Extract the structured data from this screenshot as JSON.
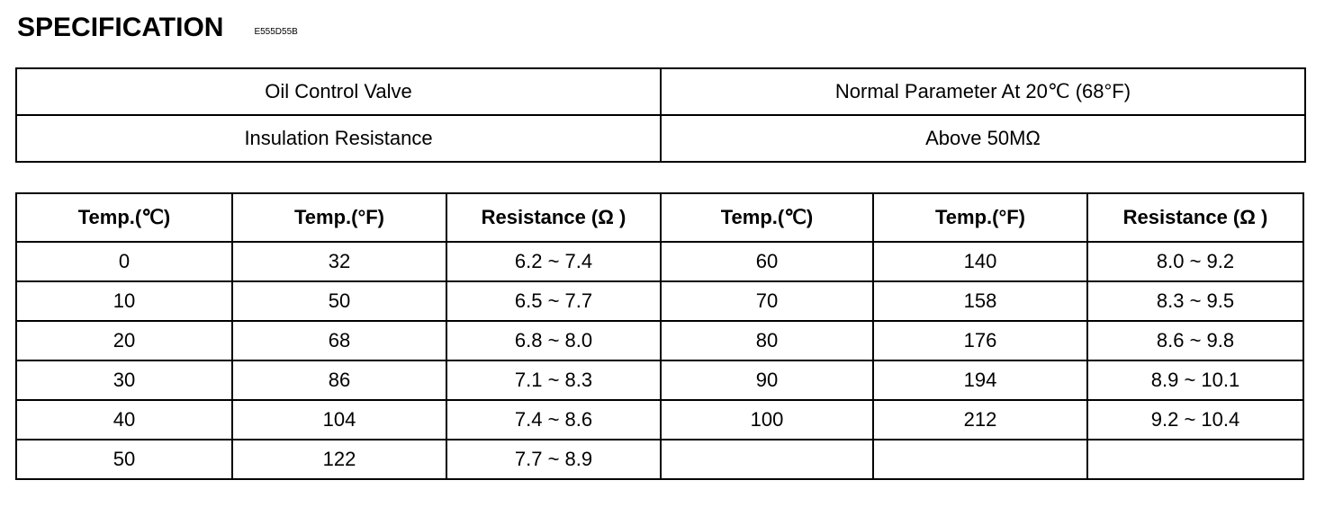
{
  "header": {
    "title": "SPECIFICATION",
    "code": "E555D55B"
  },
  "info_table": {
    "rows": [
      [
        "Oil Control Valve",
        "Normal Parameter At 20℃ (68°F)"
      ],
      [
        "Insulation Resistance",
        "Above 50MΩ"
      ]
    ]
  },
  "data_table": {
    "headers": [
      "Temp.(℃)",
      "Temp.(°F)",
      "Resistance (Ω )",
      "Temp.(℃)",
      "Temp.(°F)",
      "Resistance (Ω )"
    ],
    "rows": [
      [
        "0",
        "32",
        "6.2 ~ 7.4",
        "60",
        "140",
        "8.0 ~ 9.2"
      ],
      [
        "10",
        "50",
        "6.5 ~ 7.7",
        "70",
        "158",
        "8.3 ~ 9.5"
      ],
      [
        "20",
        "68",
        "6.8 ~ 8.0",
        "80",
        "176",
        "8.6 ~ 9.8"
      ],
      [
        "30",
        "86",
        "7.1 ~ 8.3",
        "90",
        "194",
        "8.9 ~ 10.1"
      ],
      [
        "40",
        "104",
        "7.4 ~ 8.6",
        "100",
        "212",
        "9.2 ~ 10.4"
      ],
      [
        "50",
        "122",
        "7.7 ~ 8.9",
        "",
        "",
        ""
      ]
    ]
  }
}
